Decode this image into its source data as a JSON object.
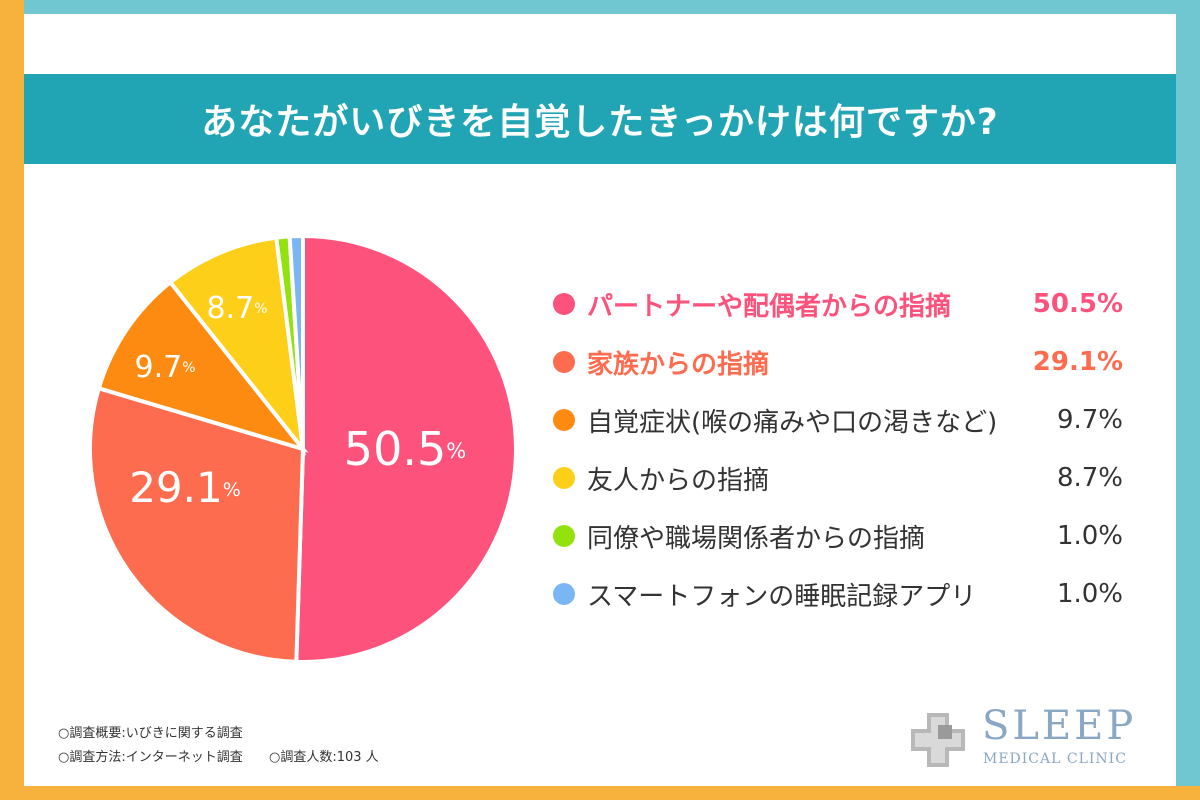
{
  "chart_data": {
    "type": "pie",
    "title": "あなたがいびきを自覚したきっかけは何ですか?",
    "unit": "%",
    "slices": [
      {
        "label": "パートナーや配偶者からの指摘",
        "value": 50.5,
        "value_text": "50.5%",
        "pie_label": "50.5",
        "color": "#fc527b"
      },
      {
        "label": "家族からの指摘",
        "value": 29.1,
        "value_text": "29.1%",
        "pie_label": "29.1",
        "color": "#fd6c4f"
      },
      {
        "label": "自覚症状(喉の痛みや口の渇きなど)",
        "value": 9.7,
        "value_text": "9.7%",
        "pie_label": "9.7",
        "color": "#fd8b11"
      },
      {
        "label": "友人からの指摘",
        "value": 8.7,
        "value_text": "8.7%",
        "pie_label": "8.7",
        "color": "#fdcf18"
      },
      {
        "label": "同僚や職場関係者からの指摘",
        "value": 1.0,
        "value_text": "1.0%",
        "color": "#93e20d"
      },
      {
        "label": "スマートフォンの睡眠記録アプリ",
        "value": 1.0,
        "value_text": "1.0%",
        "color": "#7bb6f4"
      }
    ]
  },
  "notes": {
    "overview": "○調査概要:いびきに関する調査",
    "method": "○調査方法:インターネット調査",
    "respondents": "○調査人数:103 人"
  },
  "logo": {
    "title": "SLEEP",
    "subtitle": "MEDICAL CLINIC"
  }
}
